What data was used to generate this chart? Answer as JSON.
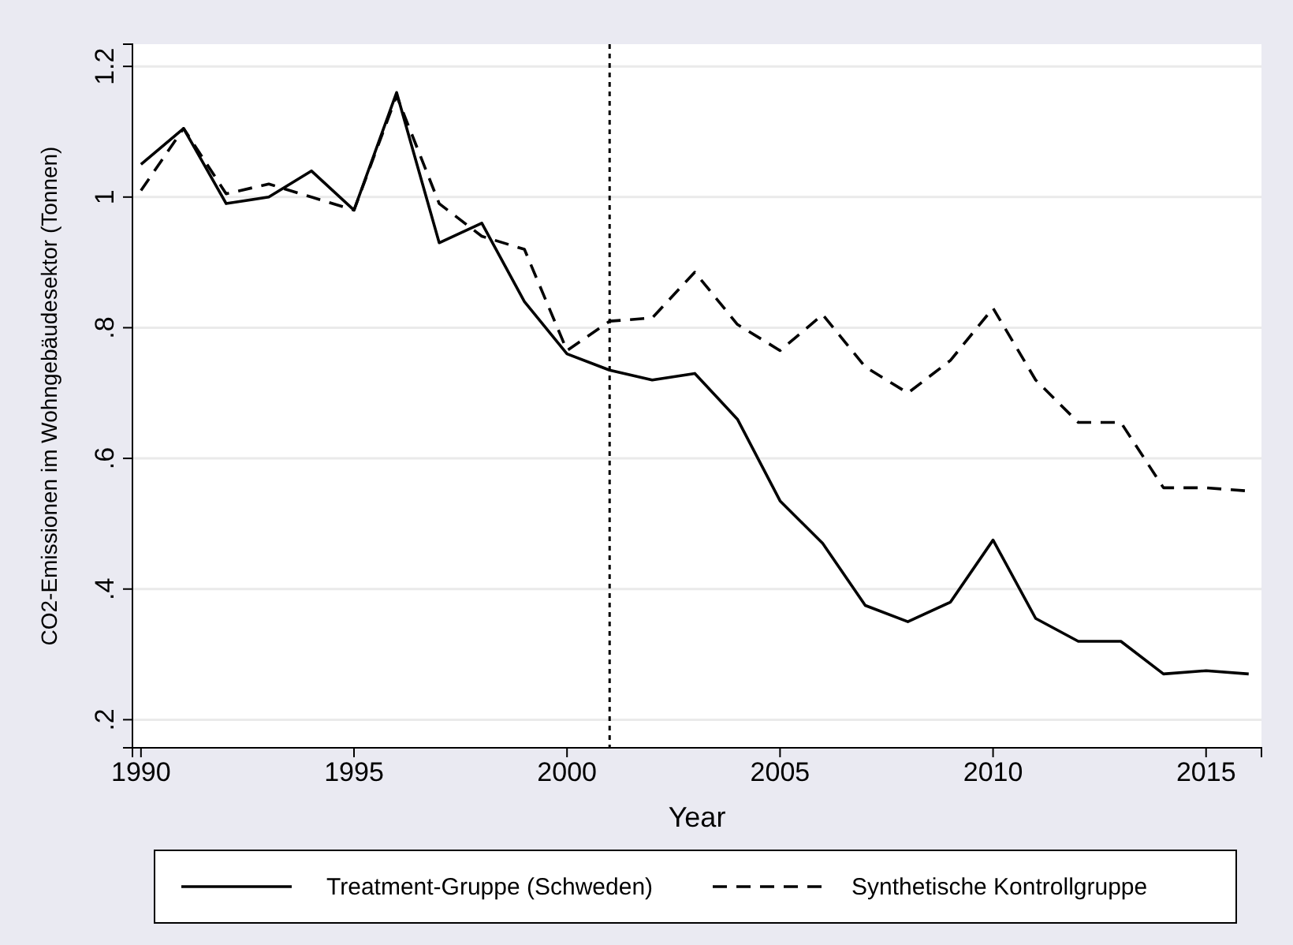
{
  "chart_data": {
    "type": "line",
    "xlabel": "Year",
    "ylabel": "CO2-Emissionen im Wohngebäudesektor (Tonnen)",
    "x": [
      1990,
      1991,
      1992,
      1993,
      1994,
      1995,
      1996,
      1997,
      1998,
      1999,
      2000,
      2001,
      2002,
      2003,
      2004,
      2005,
      2006,
      2007,
      2008,
      2009,
      2010,
      2011,
      2012,
      2013,
      2014,
      2015,
      2016
    ],
    "series": [
      {
        "name": "Treatment-Gruppe (Schweden)",
        "color": "#000000",
        "line_style": "solid",
        "values": [
          1.05,
          1.105,
          0.99,
          1.0,
          1.04,
          0.98,
          1.16,
          0.93,
          0.96,
          0.84,
          0.76,
          0.735,
          0.72,
          0.73,
          0.66,
          0.535,
          0.47,
          0.375,
          0.35,
          0.38,
          0.475,
          0.355,
          0.32,
          0.32,
          0.27,
          0.275,
          0.27
        ]
      },
      {
        "name": "Synthetische Kontrollgruppe",
        "color": "#000000",
        "line_style": "dashed",
        "values": [
          1.01,
          1.105,
          1.005,
          1.02,
          1.0,
          0.98,
          1.155,
          0.99,
          0.94,
          0.92,
          0.765,
          0.81,
          0.815,
          0.885,
          0.805,
          0.765,
          0.82,
          0.74,
          0.7,
          0.75,
          0.83,
          0.72,
          0.655,
          0.655,
          0.555,
          0.555,
          0.55
        ]
      }
    ],
    "xlim": [
      1989.8,
      2016.3
    ],
    "xticks": [
      1990,
      1995,
      2000,
      2005,
      2010,
      2015
    ],
    "ylim": [
      0.157,
      1.234
    ],
    "yticks": [
      {
        "value": 0.2,
        "label": ".2"
      },
      {
        "value": 0.4,
        "label": ".4"
      },
      {
        "value": 0.6,
        "label": ".6"
      },
      {
        "value": 0.8,
        "label": ".8"
      },
      {
        "value": 1,
        "label": "1"
      },
      {
        "value": 1.2,
        "label": "1.2"
      }
    ],
    "grid": "y",
    "legend": "bottom",
    "ref_lines": [
      {
        "axis": "x",
        "value": 2001,
        "line_style": "dotted",
        "color": "#000000"
      }
    ]
  }
}
